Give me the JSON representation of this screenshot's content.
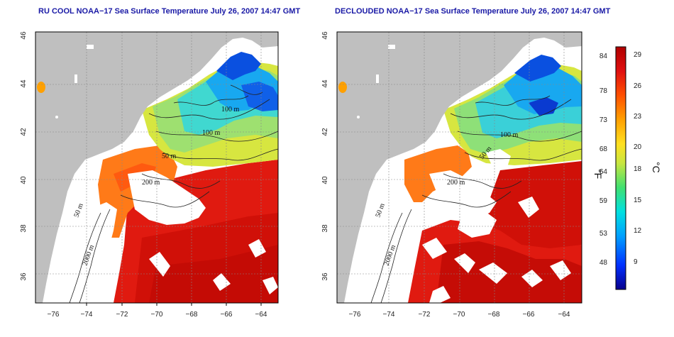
{
  "panels": [
    {
      "id": "left",
      "title": "RU COOL NOAA−17 Sea Surface Temperature July 26, 2007 14:47 GMT",
      "declouded": false
    },
    {
      "id": "right",
      "title": "DECLOUDED NOAA−17 Sea Surface Temperature July 26, 2007 14:47 GMT",
      "declouded": true
    }
  ],
  "axes": {
    "longitude_ticks": [
      "−76",
      "−74",
      "−72",
      "−70",
      "−68",
      "−66",
      "−64"
    ],
    "latitude_ticks": [
      "36",
      "38",
      "40",
      "42",
      "44",
      "46"
    ]
  },
  "contour_labels": [
    "100 m",
    "100 m",
    "50 m",
    "200 m",
    "50 m",
    "2000 m"
  ],
  "colorbar": {
    "fahrenheit_ticks": [
      "84",
      "78",
      "73",
      "68",
      "64",
      "59",
      "53",
      "48"
    ],
    "celsius_ticks": [
      "29",
      "26",
      "23",
      "20",
      "18",
      "15",
      "12",
      "9"
    ],
    "fahrenheit_unit": "°F",
    "celsius_unit": "°C",
    "colors": [
      "#08008c",
      "#0030ff",
      "#00a0ff",
      "#00e0e0",
      "#40e070",
      "#c8e640",
      "#ffe020",
      "#ffa000",
      "#ff5000",
      "#e01010",
      "#b00000"
    ]
  },
  "colors": {
    "land": "#bfbfbf",
    "no_data": "#ffffff",
    "title": "#1a1aa6"
  }
}
